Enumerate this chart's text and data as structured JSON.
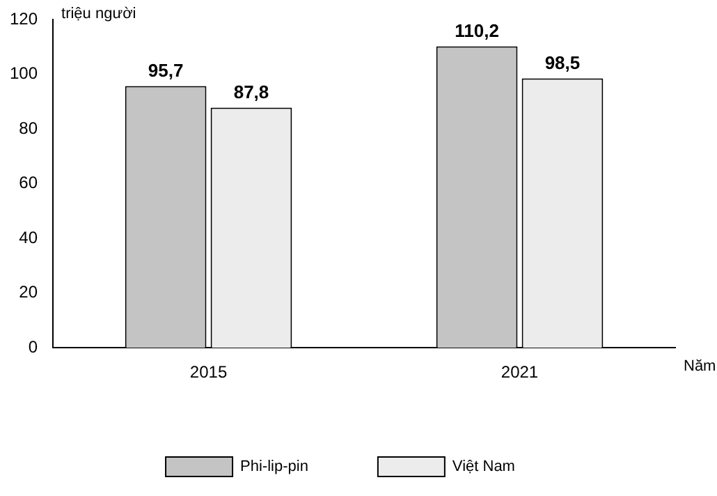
{
  "chart_data": {
    "type": "bar",
    "xlabel": "Năm",
    "ylabel": "triệu người",
    "categories": [
      "2015",
      "2021"
    ],
    "series": [
      {
        "name": "Phi-lip-pin",
        "color": "#c4c4c4",
        "values": [
          95.7,
          110.2
        ],
        "value_labels": [
          "95,7",
          "110,2"
        ]
      },
      {
        "name": "Việt Nam",
        "color": "#ececec",
        "values": [
          87.8,
          98.5
        ],
        "value_labels": [
          "87,8",
          "98,5"
        ]
      }
    ],
    "ylim": [
      0,
      120
    ],
    "yticks": [
      0,
      20,
      40,
      60,
      80,
      100,
      120
    ],
    "grid": false,
    "legend": "bottom"
  }
}
